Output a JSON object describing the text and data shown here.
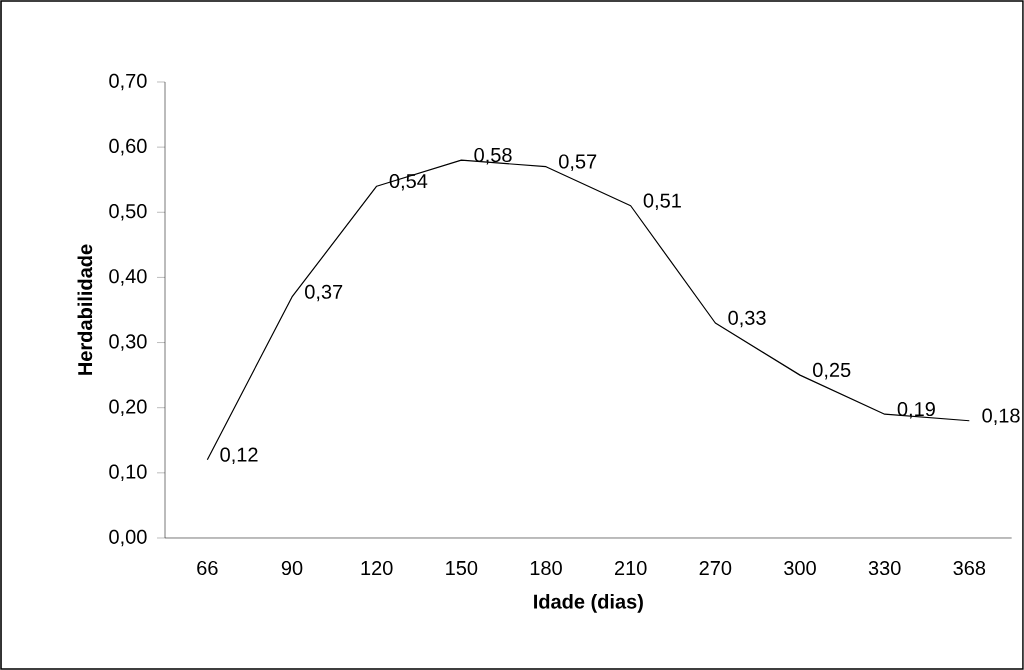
{
  "chart_data": {
    "type": "line",
    "xlabel": "Idade (dias)",
    "ylabel": "Herdabilidade",
    "categories": [
      "66",
      "90",
      "120",
      "150",
      "180",
      "210",
      "270",
      "300",
      "330",
      "368"
    ],
    "values": [
      0.12,
      0.37,
      0.54,
      0.58,
      0.57,
      0.51,
      0.33,
      0.25,
      0.19,
      0.18
    ],
    "value_labels": [
      "0,12",
      "0,37",
      "0,54",
      "0,58",
      "0,57",
      "0,51",
      "0,33",
      "0,25",
      "0,19",
      "0,18"
    ],
    "color": "#000000",
    "marker": "none",
    "line_style": "solid",
    "grid": false,
    "ylim": [
      0,
      0.7
    ],
    "yticks": [
      {
        "value": 0,
        "label": "0,00"
      },
      {
        "value": 0.1,
        "label": "0,10"
      },
      {
        "value": 0.2,
        "label": "0,20"
      },
      {
        "value": 0.3,
        "label": "0,30"
      },
      {
        "value": 0.4,
        "label": "0,40"
      },
      {
        "value": 0.5,
        "label": "0,50"
      },
      {
        "value": 0.6,
        "label": "0,60"
      },
      {
        "value": 0.7,
        "label": "0,70"
      }
    ]
  }
}
